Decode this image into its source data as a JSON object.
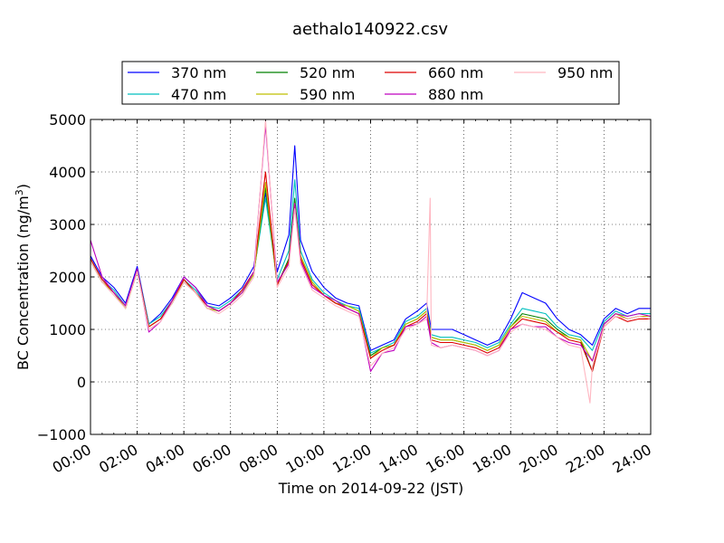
{
  "chart_data": {
    "type": "line",
    "title": "aethalo140922.csv",
    "xlabel": "Time on 2014-09-22 (JST)",
    "ylabel_main": "BC Concentration (ng/m",
    "ylabel_sup": "3",
    "ylabel_tail": ")",
    "x_tick_labels": [
      "00:00",
      "02:00",
      "04:00",
      "06:00",
      "08:00",
      "10:00",
      "12:00",
      "14:00",
      "16:00",
      "18:00",
      "20:00",
      "22:00",
      "24:00"
    ],
    "y_tick_labels": [
      "−1000",
      "0",
      "1000",
      "2000",
      "3000",
      "4000",
      "5000"
    ],
    "xlim_hours": [
      0,
      24
    ],
    "ylim": [
      -1000,
      5000
    ],
    "grid": true,
    "legend_position": "top-center",
    "series": [
      {
        "name": "370 nm",
        "color": "#0000ff",
        "x": [
          0,
          0.5,
          1,
          1.5,
          2,
          2.5,
          3,
          3.5,
          4,
          4.5,
          5,
          5.5,
          6,
          6.5,
          7,
          7.5,
          8,
          8.5,
          8.75,
          9,
          9.5,
          10,
          10.5,
          11,
          11.5,
          12,
          12.5,
          13,
          13.5,
          14,
          14.4,
          14.6,
          15,
          15.5,
          16,
          16.5,
          17,
          17.5,
          18,
          18.5,
          19,
          19.5,
          20,
          20.5,
          21,
          21.5,
          22,
          22.5,
          23,
          23.5,
          24
        ],
        "y": [
          2400,
          2000,
          1800,
          1500,
          2200,
          1100,
          1300,
          1600,
          2000,
          1800,
          1500,
          1450,
          1600,
          1800,
          2200,
          3600,
          2100,
          2800,
          4500,
          2700,
          2100,
          1800,
          1600,
          1500,
          1450,
          600,
          700,
          800,
          1200,
          1350,
          1500,
          1000,
          1000,
          1000,
          900,
          800,
          700,
          800,
          1200,
          1700,
          1600,
          1500,
          1200,
          1000,
          900,
          700,
          1200,
          1400,
          1300,
          1400,
          1400
        ]
      },
      {
        "name": "470 nm",
        "color": "#00bfbf",
        "x": [
          0,
          0.5,
          1,
          1.5,
          2,
          2.5,
          3,
          3.5,
          4,
          4.5,
          5,
          5.5,
          6,
          6.5,
          7,
          7.5,
          8,
          8.5,
          8.75,
          9,
          9.5,
          10,
          10.5,
          11,
          11.5,
          12,
          12.5,
          13,
          13.5,
          14,
          14.4,
          14.6,
          15,
          15.5,
          16,
          16.5,
          17,
          17.5,
          18,
          18.5,
          19,
          19.5,
          20,
          20.5,
          21,
          21.5,
          22,
          22.5,
          23,
          23.5,
          24
        ],
        "y": [
          2350,
          1950,
          1750,
          1450,
          2150,
          1100,
          1250,
          1550,
          1950,
          1750,
          1450,
          1400,
          1550,
          1750,
          2100,
          3500,
          1950,
          2500,
          3850,
          2500,
          1950,
          1700,
          1550,
          1450,
          1400,
          550,
          650,
          750,
          1150,
          1250,
          1400,
          900,
          850,
          850,
          800,
          750,
          650,
          750,
          1100,
          1400,
          1350,
          1300,
          1050,
          900,
          850,
          600,
          1150,
          1350,
          1250,
          1300,
          1300
        ]
      },
      {
        "name": "520 nm",
        "color": "#008000",
        "x": [
          0,
          0.5,
          1,
          1.5,
          2,
          2.5,
          3,
          3.5,
          4,
          4.5,
          5,
          5.5,
          6,
          6.5,
          7,
          7.5,
          8,
          8.5,
          8.75,
          9,
          9.5,
          10,
          10.5,
          11,
          11.5,
          12,
          12.5,
          13,
          13.5,
          14,
          14.4,
          14.6,
          15,
          15.5,
          16,
          16.5,
          17,
          17.5,
          18,
          18.5,
          19,
          19.5,
          20,
          20.5,
          21,
          21.5,
          22,
          22.5,
          23,
          23.5,
          24
        ],
        "y": [
          2300,
          1900,
          1700,
          1400,
          2100,
          1050,
          1200,
          1500,
          1900,
          1700,
          1400,
          1350,
          1500,
          1700,
          2050,
          3700,
          1850,
          2350,
          3500,
          2400,
          1900,
          1650,
          1500,
          1450,
          1350,
          500,
          650,
          700,
          1100,
          1200,
          1350,
          850,
          800,
          800,
          750,
          700,
          600,
          700,
          1050,
          1300,
          1250,
          1200,
          1000,
          850,
          800,
          200,
          1100,
          1300,
          1200,
          1250,
          1250
        ]
      },
      {
        "name": "590 nm",
        "color": "#bfbf00",
        "x": [
          0,
          0.5,
          1,
          1.5,
          2,
          2.5,
          3,
          3.5,
          4,
          4.5,
          5,
          5.5,
          6,
          6.5,
          7,
          7.5,
          8,
          8.5,
          8.75,
          9,
          9.5,
          10,
          10.5,
          11,
          11.5,
          12,
          12.5,
          13,
          13.5,
          14,
          14.4,
          14.6,
          15,
          15.5,
          16,
          16.5,
          17,
          17.5,
          18,
          18.5,
          19,
          19.5,
          20,
          20.5,
          21,
          21.5,
          22,
          22.5,
          23,
          23.5,
          24
        ],
        "y": [
          2300,
          1900,
          1700,
          1400,
          2100,
          1050,
          1200,
          1500,
          1950,
          1700,
          1400,
          1350,
          1500,
          1700,
          2050,
          3800,
          1850,
          2300,
          3400,
          2400,
          1900,
          1650,
          1500,
          1450,
          1350,
          450,
          650,
          700,
          1100,
          1200,
          1350,
          850,
          800,
          800,
          750,
          700,
          600,
          700,
          1050,
          1250,
          1200,
          1150,
          950,
          850,
          800,
          400,
          1100,
          1300,
          1200,
          1250,
          1250
        ]
      },
      {
        "name": "660 nm",
        "color": "#dd0000",
        "x": [
          0,
          0.5,
          1,
          1.5,
          2,
          2.5,
          3,
          3.5,
          4,
          4.5,
          5,
          5.5,
          6,
          6.5,
          7,
          7.5,
          8,
          8.5,
          8.75,
          9,
          9.5,
          10,
          10.5,
          11,
          11.5,
          12,
          12.5,
          13,
          13.5,
          14,
          14.4,
          14.6,
          15,
          15.5,
          16,
          16.5,
          17,
          17.5,
          18,
          18.5,
          19,
          19.5,
          20,
          20.5,
          21,
          21.5,
          22,
          22.5,
          23,
          23.5,
          24
        ],
        "y": [
          2350,
          1950,
          1700,
          1450,
          2150,
          1050,
          1200,
          1550,
          1950,
          1700,
          1450,
          1350,
          1500,
          1750,
          2100,
          4000,
          1850,
          2300,
          3400,
          2350,
          1850,
          1650,
          1500,
          1400,
          1300,
          450,
          600,
          700,
          1050,
          1150,
          1300,
          800,
          750,
          750,
          700,
          650,
          550,
          650,
          1000,
          1200,
          1150,
          1100,
          950,
          800,
          750,
          200,
          1050,
          1250,
          1150,
          1200,
          1200
        ]
      },
      {
        "name": "880 nm",
        "color": "#bf00bf",
        "x": [
          0,
          0.5,
          1,
          1.5,
          2,
          2.5,
          3,
          3.5,
          4,
          4.5,
          5,
          5.5,
          6,
          6.5,
          7,
          7.5,
          8,
          8.5,
          8.75,
          9,
          9.5,
          10,
          10.5,
          11,
          11.5,
          12,
          12.5,
          13,
          13.5,
          14,
          14.4,
          14.6,
          15,
          15.5,
          16,
          16.5,
          17,
          17.5,
          18,
          18.5,
          19,
          19.5,
          20,
          20.5,
          21,
          21.5,
          22,
          22.5,
          23,
          23.5,
          24
        ],
        "y": [
          2700,
          2000,
          1700,
          1450,
          2150,
          950,
          1150,
          1550,
          2000,
          1800,
          1450,
          1350,
          1500,
          1700,
          2100,
          4900,
          1900,
          2250,
          3400,
          2300,
          1800,
          1650,
          1550,
          1400,
          1300,
          200,
          550,
          600,
          1050,
          1100,
          1250,
          750,
          650,
          700,
          650,
          600,
          500,
          600,
          1000,
          1100,
          1050,
          1050,
          850,
          750,
          700,
          400,
          1100,
          1300,
          1250,
          1300,
          1250
        ]
      },
      {
        "name": "950 nm",
        "color": "#ffb6c1",
        "x": [
          0,
          0.5,
          1,
          1.5,
          2,
          2.5,
          3,
          3.5,
          4,
          4.5,
          5,
          5.5,
          6,
          6.5,
          7,
          7.5,
          8,
          8.5,
          8.75,
          9,
          9.5,
          10,
          10.5,
          11,
          11.5,
          12,
          12.5,
          13,
          13.5,
          14,
          14.4,
          14.55,
          14.6,
          15,
          15.5,
          16,
          16.5,
          17,
          17.5,
          18,
          18.5,
          19,
          19.5,
          20,
          20.5,
          21,
          21.4,
          21.5,
          22,
          22.5,
          23,
          23.5,
          24
        ],
        "y": [
          2300,
          1900,
          1650,
          1400,
          2100,
          1000,
          1150,
          1500,
          1900,
          1700,
          1400,
          1300,
          1450,
          1650,
          2000,
          5000,
          1800,
          2200,
          3300,
          2250,
          1750,
          1600,
          1450,
          1350,
          1250,
          300,
          550,
          650,
          1000,
          1100,
          1200,
          3500,
          700,
          650,
          700,
          650,
          600,
          500,
          600,
          950,
          1100,
          1050,
          1000,
          850,
          700,
          650,
          -400,
          300,
          1050,
          1250,
          1200,
          1250,
          1200
        ]
      }
    ]
  }
}
